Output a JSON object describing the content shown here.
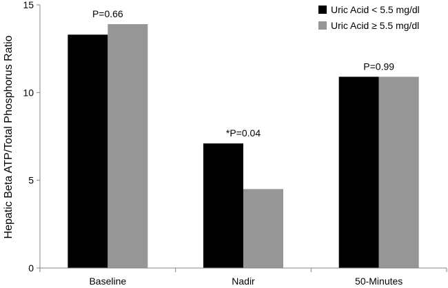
{
  "chart_data": {
    "type": "bar",
    "title": "",
    "xlabel": "",
    "ylabel": "Hepatic Beta ATP/Total Phosphorus Ratio",
    "categories": [
      "Baseline",
      "Nadir",
      "50-Minutes"
    ],
    "series": [
      {
        "name": "Uric Acid < 5.5 mg/dl",
        "values": [
          13.3,
          7.1,
          10.9
        ],
        "color": "#000000"
      },
      {
        "name": "Uric Acid ≥ 5.5 mg/dl",
        "values": [
          13.9,
          4.5,
          10.9
        ],
        "color": "#969696"
      }
    ],
    "annotations": [
      "P=0.66",
      "*P=0.04",
      "P=0.99"
    ],
    "ylim": [
      0,
      15
    ],
    "yticks": [
      0,
      5,
      10,
      15
    ],
    "grid": false,
    "legend_position": "top-right"
  }
}
